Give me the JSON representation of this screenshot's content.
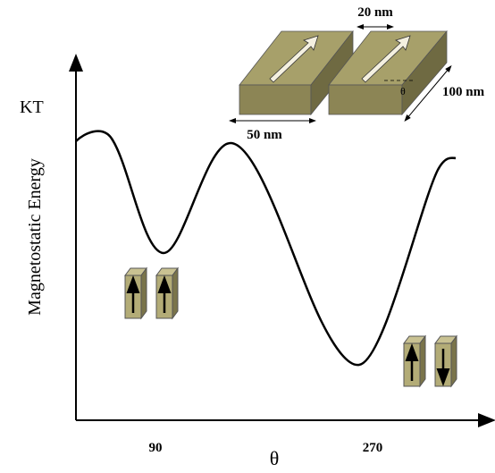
{
  "axis": {
    "unit_label": "KT",
    "y_label": "Magnetostatic Energy",
    "x_label": "θ",
    "x_ticks": [
      "90",
      "270"
    ]
  },
  "dimensions": {
    "gap": "20 nm",
    "length": "100 nm",
    "width": "50 nm",
    "angle": "θ"
  }
}
